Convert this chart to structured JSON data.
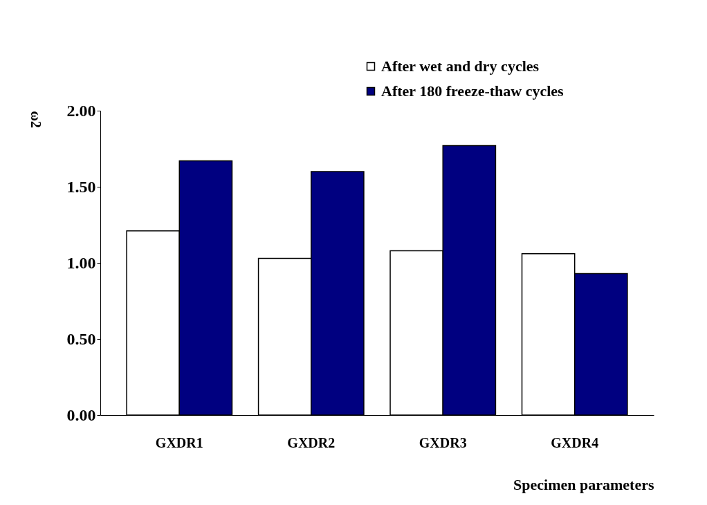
{
  "chart_data": {
    "type": "bar",
    "xlabel": "Specimen parameters",
    "ylabel": "ω2",
    "categories": [
      "GXDR1",
      "GXDR2",
      "GXDR3",
      "GXDR4"
    ],
    "series": [
      {
        "name": "After wet and dry cycles",
        "color": "#ffffff",
        "values": [
          1.21,
          1.03,
          1.08,
          1.06
        ]
      },
      {
        "name": "After 180 freeze-thaw cycles",
        "color": "#000080",
        "values": [
          1.67,
          1.6,
          1.77,
          0.93
        ]
      }
    ],
    "ylim": [
      0,
      2
    ],
    "yticks": [
      {
        "value": 0,
        "label": "0.00"
      },
      {
        "value": 0.5,
        "label": "0.50"
      },
      {
        "value": 1,
        "label": "1.00"
      },
      {
        "value": 1.5,
        "label": "1.50"
      },
      {
        "value": 2,
        "label": "2.00"
      }
    ],
    "grid": false,
    "legend": "top right"
  }
}
